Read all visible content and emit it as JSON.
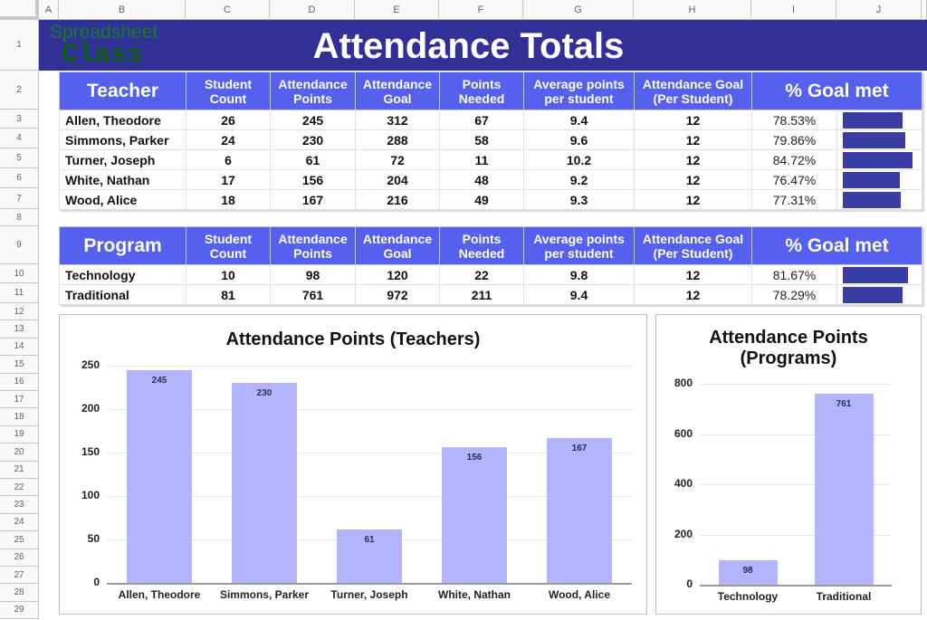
{
  "sheet": {
    "columns": [
      "A",
      "B",
      "C",
      "D",
      "E",
      "F",
      "G",
      "H",
      "I",
      "J"
    ],
    "rows": [
      "1",
      "2",
      "3",
      "4",
      "5",
      "6",
      "7",
      "8",
      "9",
      "10",
      "11",
      "12",
      "13",
      "14",
      "15",
      "16",
      "17",
      "18",
      "19",
      "20",
      "21",
      "22",
      "23",
      "24",
      "25",
      "26",
      "27",
      "28",
      "29"
    ]
  },
  "logo": {
    "line1": "Spreadsheet",
    "line2": "Class"
  },
  "title": "Attendance Totals",
  "teacher_table": {
    "headers": [
      "Teacher",
      "Student Count",
      "Attendance Points",
      "Attendance Goal",
      "Points Needed",
      "Average points per student",
      "Attendance Goal (Per Student)",
      "% Goal met"
    ],
    "rows": [
      {
        "name": "Allen, Theodore",
        "count": "26",
        "points": "245",
        "goal": "312",
        "needed": "67",
        "avg": "9.4",
        "goal_per": "12",
        "pct": "78.53%",
        "pct_val": 78.53
      },
      {
        "name": "Simmons, Parker",
        "count": "24",
        "points": "230",
        "goal": "288",
        "needed": "58",
        "avg": "9.6",
        "goal_per": "12",
        "pct": "79.86%",
        "pct_val": 79.86
      },
      {
        "name": "Turner, Joseph",
        "count": "6",
        "points": "61",
        "goal": "72",
        "needed": "11",
        "avg": "10.2",
        "goal_per": "12",
        "pct": "84.72%",
        "pct_val": 84.72
      },
      {
        "name": "White, Nathan",
        "count": "17",
        "points": "156",
        "goal": "204",
        "needed": "48",
        "avg": "9.2",
        "goal_per": "12",
        "pct": "76.47%",
        "pct_val": 76.47
      },
      {
        "name": "Wood, Alice",
        "count": "18",
        "points": "167",
        "goal": "216",
        "needed": "49",
        "avg": "9.3",
        "goal_per": "12",
        "pct": "77.31%",
        "pct_val": 77.31
      }
    ]
  },
  "program_table": {
    "headers": [
      "Program",
      "Student Count",
      "Attendance Points",
      "Attendance Goal",
      "Points Needed",
      "Average points per student",
      "Attendance Goal (Per Student)",
      "% Goal met"
    ],
    "rows": [
      {
        "name": "Technology",
        "count": "10",
        "points": "98",
        "goal": "120",
        "needed": "22",
        "avg": "9.8",
        "goal_per": "12",
        "pct": "81.67%",
        "pct_val": 81.67
      },
      {
        "name": "Traditional",
        "count": "81",
        "points": "761",
        "goal": "972",
        "needed": "211",
        "avg": "9.4",
        "goal_per": "12",
        "pct": "78.29%",
        "pct_val": 78.29
      }
    ]
  },
  "colors": {
    "banner": "#303097",
    "header": "#5560ef",
    "sparkline": "#3a3da3",
    "bar": "#b2b5fb",
    "logo": "#1a7a2a"
  },
  "chart_data": [
    {
      "type": "bar",
      "title": "Attendance Points (Teachers)",
      "categories": [
        "Allen, Theodore",
        "Simmons, Parker",
        "Turner, Joseph",
        "White, Nathan",
        "Wood, Alice"
      ],
      "values": [
        245,
        230,
        61,
        156,
        167
      ],
      "yticks": [
        "0",
        "50",
        "100",
        "150",
        "200",
        "250"
      ],
      "ylim": [
        0,
        250
      ],
      "xlabel": "",
      "ylabel": "",
      "grid": true,
      "legend": "none",
      "data_labels": true
    },
    {
      "type": "bar",
      "title": "Attendance Points (Programs)",
      "title_lines": [
        "Attendance Points",
        "(Programs)"
      ],
      "categories": [
        "Technology",
        "Traditional"
      ],
      "values": [
        98,
        761
      ],
      "yticks": [
        "0",
        "200",
        "400",
        "600",
        "800"
      ],
      "ylim": [
        0,
        800
      ],
      "xlabel": "",
      "ylabel": "",
      "grid": true,
      "legend": "none",
      "data_labels": true
    }
  ]
}
